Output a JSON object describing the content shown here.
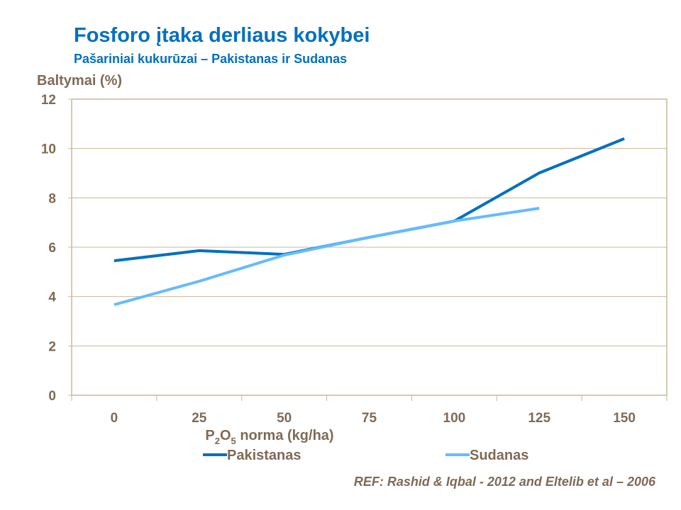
{
  "title": "Fosforo įtaka derliaus kokybei",
  "subtitle": "Pašariniai kukurūzai – Pakistanas ir Sudanas",
  "reference": "REF: Rashid & Iqbal - 2012 and Eltelib et al – 2006",
  "chart_data": {
    "type": "line",
    "title": "Fosforo įtaka derliaus kokybei",
    "ylabel": "Baltymai (%)",
    "xlabel": "P2O5 norma (kg/ha)",
    "xlabel_parts": {
      "p": "P",
      "sub1": "2",
      "o": "O",
      "sub2": "5",
      "rest": " norma (kg/ha)"
    },
    "categories": [
      "0",
      "25",
      "50",
      "75",
      "100",
      "125",
      "150"
    ],
    "ylim": [
      0,
      12
    ],
    "yticks": [
      "0",
      "2",
      "4",
      "6",
      "8",
      "10",
      "12"
    ],
    "grid": true,
    "legend_position": "bottom",
    "series": [
      {
        "name": "Pakistanas",
        "color": "#0070C0",
        "values": [
          5.45,
          5.86,
          5.71,
          6.4,
          7.06,
          9.01,
          10.4
        ]
      },
      {
        "name": "Sudanas",
        "color": "#66BBFF",
        "values": [
          3.67,
          4.62,
          5.68,
          6.4,
          7.06,
          7.58,
          null
        ]
      }
    ]
  }
}
